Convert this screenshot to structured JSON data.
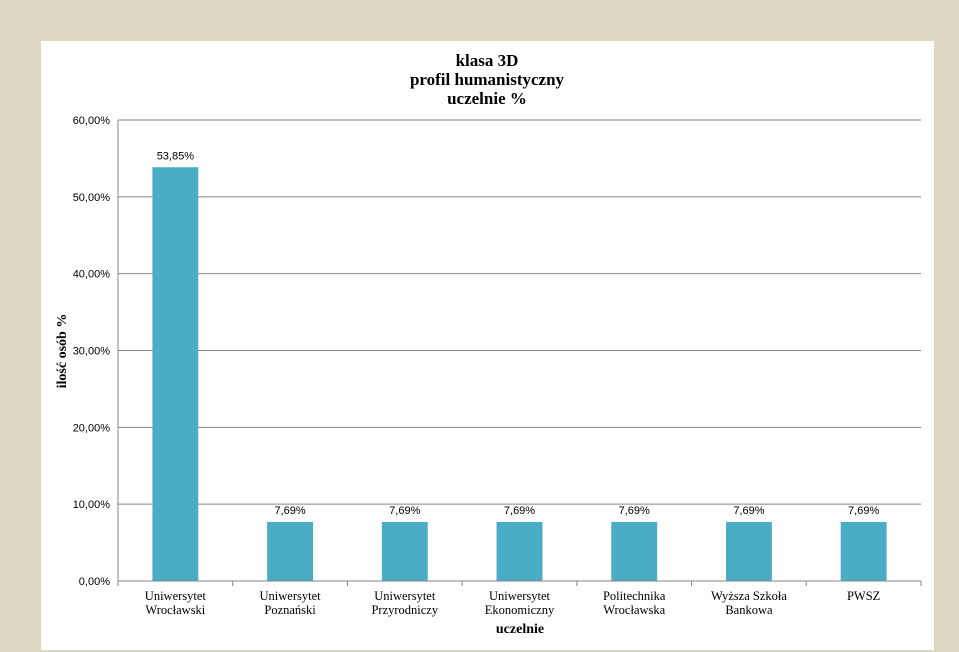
{
  "chart_data": {
    "type": "bar",
    "title": [
      "klasa 3D",
      "profil humanistyczny",
      "uczelnie %"
    ],
    "xlabel": "uczelnie",
    "ylabel": "ilość osób %",
    "ylim": [
      0,
      60
    ],
    "yticks": [
      "0,00%",
      "10,00%",
      "20,00%",
      "30,00%",
      "40,00%",
      "50,00%",
      "60,00%"
    ],
    "grid": true,
    "legend": "none",
    "categories": [
      [
        "Uniwersytet",
        "Wrocławski"
      ],
      [
        "Uniwersytet",
        "Poznański"
      ],
      [
        "Uniwersytet",
        "Przyrodniczy"
      ],
      [
        "Uniwersytet",
        "Ekonomiczny"
      ],
      [
        "Politechnika",
        "Wrocławska"
      ],
      [
        "Wyższa Szkoła",
        "Bankowa"
      ],
      [
        "PWSZ"
      ]
    ],
    "values": [
      53.85,
      7.69,
      7.69,
      7.69,
      7.69,
      7.69,
      7.69
    ],
    "data_labels": [
      "53,85%",
      "7,69%",
      "7,69%",
      "7,69%",
      "7,69%",
      "7,69%",
      "7,69%"
    ],
    "bar_color": "#4bacc6"
  }
}
